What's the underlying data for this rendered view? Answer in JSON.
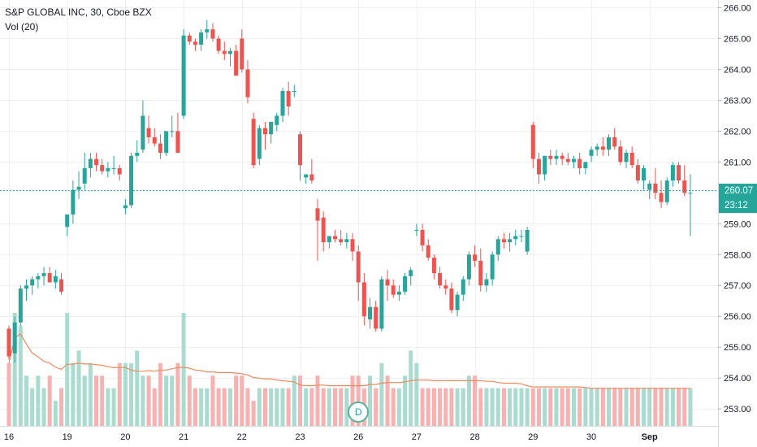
{
  "legend": {
    "symbol_line": "S&P GLOBAL INC, 30, Cboe BZX",
    "volume_line": "Vol (20)"
  },
  "price_axis": {
    "ticks": [
      "266.00",
      "265.00",
      "264.00",
      "263.00",
      "262.00",
      "261.00",
      "259.00",
      "258.00",
      "257.00",
      "256.00",
      "255.00",
      "254.00",
      "253.00"
    ],
    "tick_values": [
      266,
      265,
      264,
      263,
      262,
      261,
      259,
      258,
      257,
      256,
      255,
      254,
      253
    ],
    "ylim": [
      252.45,
      266.25
    ]
  },
  "last_price": {
    "value_label": "260.07",
    "value": 260.07,
    "countdown": "23:12",
    "color": "#26a69a"
  },
  "time_axis": {
    "labels": [
      "16",
      "19",
      "20",
      "21",
      "22",
      "23",
      "26",
      "27",
      "28",
      "29",
      "30",
      "Sep"
    ],
    "label_bar_index": [
      0,
      10,
      20,
      30,
      40,
      50,
      60,
      70,
      80,
      90,
      100,
      110
    ]
  },
  "event_badge": {
    "label": "D",
    "bar_index": 60
  },
  "colors": {
    "up": "#26a69a",
    "down": "#ef5350",
    "vol_up": "#a9dccf",
    "vol_down": "#f7b1b0",
    "ma": "#f08a5d",
    "grid": "#eef0f3",
    "axis_text": "#131722"
  },
  "chart_data": {
    "type": "candlestick",
    "title": "S&P GLOBAL INC, 30, Cboe BZX",
    "series": [
      {
        "name": "S&P GLOBAL INC",
        "kind": "ohlc",
        "values": [
          [
            255.6,
            255.7,
            254.6,
            254.7
          ],
          [
            254.8,
            256.0,
            254.5,
            255.8
          ],
          [
            255.8,
            257.0,
            255.7,
            256.9
          ],
          [
            256.9,
            257.2,
            256.5,
            257.0
          ],
          [
            257.0,
            257.3,
            256.7,
            257.2
          ],
          [
            257.2,
            257.4,
            256.9,
            257.3
          ],
          [
            257.3,
            257.6,
            257.0,
            257.4
          ],
          [
            257.4,
            257.6,
            257.1,
            257.1
          ],
          [
            257.1,
            257.5,
            256.9,
            257.3
          ],
          [
            257.2,
            257.4,
            256.7,
            256.8
          ],
          [
            258.9,
            259.3,
            258.6,
            259.3
          ],
          [
            259.3,
            260.4,
            259.0,
            260.1
          ],
          [
            260.1,
            260.7,
            259.8,
            260.2
          ],
          [
            260.3,
            261.3,
            260.1,
            260.8
          ],
          [
            260.8,
            261.3,
            260.5,
            261.1
          ],
          [
            261.1,
            261.3,
            260.7,
            260.9
          ],
          [
            260.9,
            261.1,
            260.6,
            260.7
          ],
          [
            260.7,
            261.0,
            260.5,
            260.8
          ],
          [
            260.8,
            261.2,
            260.6,
            260.8
          ],
          [
            260.8,
            260.9,
            260.4,
            260.6
          ],
          [
            259.5,
            259.8,
            259.3,
            259.6
          ],
          [
            259.6,
            261.3,
            259.5,
            261.2
          ],
          [
            261.2,
            261.7,
            261.0,
            261.3
          ],
          [
            261.4,
            263.0,
            261.3,
            262.5
          ],
          [
            262.1,
            262.5,
            261.6,
            261.8
          ],
          [
            261.8,
            262.1,
            261.5,
            261.6
          ],
          [
            261.6,
            261.9,
            261.1,
            261.3
          ],
          [
            261.3,
            262.0,
            261.2,
            262.0
          ],
          [
            262.0,
            262.5,
            261.8,
            262.0
          ],
          [
            262.0,
            262.6,
            261.3,
            261.3
          ],
          [
            262.5,
            265.3,
            262.4,
            265.1
          ],
          [
            265.1,
            265.2,
            264.8,
            264.9
          ],
          [
            264.9,
            265.0,
            264.6,
            264.8
          ],
          [
            264.8,
            265.3,
            264.6,
            265.2
          ],
          [
            265.2,
            265.6,
            265.0,
            265.3
          ],
          [
            265.3,
            265.5,
            264.9,
            265.0
          ],
          [
            265.0,
            265.1,
            264.5,
            264.6
          ],
          [
            264.6,
            264.9,
            264.3,
            264.5
          ],
          [
            264.5,
            264.7,
            264.1,
            264.6
          ],
          [
            264.6,
            264.8,
            263.8,
            263.8
          ],
          [
            265.0,
            265.3,
            263.9,
            264.0
          ],
          [
            264.0,
            264.3,
            262.9,
            263.1
          ],
          [
            262.4,
            262.6,
            260.8,
            260.9
          ],
          [
            261.1,
            262.2,
            260.9,
            262.1
          ],
          [
            262.1,
            262.3,
            261.4,
            261.9
          ],
          [
            261.9,
            262.3,
            261.6,
            262.3
          ],
          [
            262.2,
            262.6,
            262.0,
            262.5
          ],
          [
            262.5,
            263.4,
            262.3,
            263.3
          ],
          [
            263.3,
            263.6,
            262.5,
            262.8
          ],
          [
            263.3,
            263.5,
            263.1,
            263.3
          ],
          [
            261.9,
            262.0,
            260.4,
            260.9
          ],
          [
            260.5,
            260.6,
            260.3,
            260.6
          ],
          [
            260.6,
            261.1,
            260.3,
            260.4
          ],
          [
            259.5,
            259.8,
            257.8,
            259.1
          ],
          [
            259.2,
            259.4,
            258.1,
            258.4
          ],
          [
            258.4,
            258.6,
            258.2,
            258.6
          ],
          [
            258.6,
            258.8,
            258.4,
            258.5
          ],
          [
            258.5,
            258.8,
            258.3,
            258.4
          ],
          [
            258.4,
            258.7,
            258.2,
            258.5
          ],
          [
            258.5,
            258.7,
            257.8,
            258.1
          ],
          [
            258.1,
            258.3,
            256.5,
            257.1
          ],
          [
            257.1,
            257.4,
            255.7,
            256.0
          ],
          [
            255.9,
            256.6,
            255.6,
            256.3
          ],
          [
            256.3,
            256.5,
            255.5,
            255.6
          ],
          [
            255.6,
            257.3,
            255.5,
            257.2
          ],
          [
            257.2,
            257.5,
            256.5,
            257.0
          ],
          [
            257.0,
            257.2,
            256.6,
            256.7
          ],
          [
            256.7,
            257.0,
            256.5,
            256.8
          ],
          [
            256.8,
            257.4,
            256.7,
            257.3
          ],
          [
            257.3,
            257.6,
            257.0,
            257.5
          ],
          [
            258.8,
            259.0,
            258.6,
            258.8
          ],
          [
            258.8,
            259.0,
            258.1,
            258.3
          ],
          [
            258.3,
            258.5,
            257.8,
            257.9
          ],
          [
            257.9,
            258.0,
            257.2,
            257.4
          ],
          [
            257.4,
            257.6,
            256.9,
            257.0
          ],
          [
            257.0,
            257.2,
            256.7,
            256.9
          ],
          [
            256.9,
            257.1,
            256.1,
            256.2
          ],
          [
            256.2,
            256.8,
            256.0,
            256.7
          ],
          [
            256.7,
            257.3,
            256.5,
            257.2
          ],
          [
            257.2,
            258.1,
            257.0,
            258.0
          ],
          [
            258.0,
            258.3,
            257.6,
            257.8
          ],
          [
            257.8,
            258.2,
            256.8,
            257.0
          ],
          [
            257.0,
            257.4,
            256.8,
            257.2
          ],
          [
            257.2,
            258.1,
            257.0,
            258.0
          ],
          [
            258.0,
            258.6,
            257.8,
            258.5
          ],
          [
            258.5,
            258.7,
            258.2,
            258.4
          ],
          [
            258.4,
            258.7,
            258.1,
            258.5
          ],
          [
            258.5,
            258.8,
            258.3,
            258.6
          ],
          [
            258.6,
            258.8,
            258.4,
            258.6
          ],
          [
            258.1,
            258.9,
            258.0,
            258.8
          ],
          [
            262.2,
            262.3,
            260.8,
            261.1
          ],
          [
            261.1,
            261.3,
            260.3,
            260.6
          ],
          [
            260.6,
            261.2,
            260.4,
            261.2
          ],
          [
            261.2,
            261.4,
            260.9,
            261.1
          ],
          [
            261.1,
            261.4,
            260.9,
            261.2
          ],
          [
            261.2,
            261.3,
            260.9,
            261.1
          ],
          [
            261.1,
            261.3,
            260.9,
            261.0
          ],
          [
            261.0,
            261.2,
            260.8,
            261.1
          ],
          [
            261.1,
            261.3,
            260.6,
            260.8
          ],
          [
            260.8,
            261.0,
            260.6,
            261.0
          ],
          [
            261.2,
            261.5,
            261.0,
            261.4
          ],
          [
            261.4,
            261.6,
            261.2,
            261.5
          ],
          [
            261.5,
            261.8,
            261.2,
            261.4
          ],
          [
            261.4,
            261.9,
            261.2,
            261.8
          ],
          [
            261.8,
            262.1,
            261.4,
            261.5
          ],
          [
            261.5,
            261.7,
            260.9,
            261.0
          ],
          [
            261.0,
            261.4,
            260.8,
            261.3
          ],
          [
            261.3,
            261.5,
            260.8,
            260.9
          ],
          [
            260.9,
            261.1,
            260.3,
            260.4
          ],
          [
            260.4,
            260.9,
            260.1,
            260.8
          ],
          [
            260.1,
            260.4,
            259.8,
            260.3
          ],
          [
            260.3,
            260.8,
            259.8,
            260.0
          ],
          [
            260.0,
            260.4,
            259.5,
            259.7
          ],
          [
            259.7,
            260.5,
            259.6,
            260.4
          ],
          [
            260.4,
            261.0,
            260.2,
            260.9
          ],
          [
            260.9,
            261.0,
            260.3,
            260.4
          ],
          [
            260.4,
            260.9,
            259.9,
            260.0
          ],
          [
            260.0,
            260.6,
            258.6,
            260.0
          ]
        ]
      }
    ],
    "volume": {
      "values": [
        5,
        9,
        8,
        4,
        3,
        4,
        3,
        4,
        2,
        3,
        9,
        5,
        6,
        4,
        5,
        4,
        4,
        3,
        3,
        5,
        5,
        5,
        6,
        4,
        4,
        3,
        5,
        4,
        4,
        5,
        9,
        4,
        3,
        3,
        3,
        4,
        3,
        3,
        3,
        4,
        4,
        3,
        2,
        3,
        3,
        3,
        3,
        3,
        3,
        4,
        4,
        3,
        3,
        4,
        3,
        3,
        3,
        3,
        3,
        4,
        4,
        3,
        4,
        3,
        5,
        4,
        3,
        3,
        4,
        6,
        5,
        3,
        3,
        3,
        3,
        3,
        3,
        3,
        3,
        4,
        4,
        3,
        3,
        3,
        3,
        3,
        3,
        3,
        3,
        3,
        3,
        3,
        3,
        3,
        3,
        3,
        3,
        3,
        3,
        3,
        3,
        3,
        3,
        3,
        3,
        3,
        3,
        3,
        3,
        3,
        3,
        3,
        3,
        3,
        3,
        3,
        3,
        3,
        3,
        3,
        3
      ]
    },
    "xlabel": "",
    "ylabel": "",
    "grid": true,
    "legend_position": "top-left",
    "axis_position": "right"
  }
}
